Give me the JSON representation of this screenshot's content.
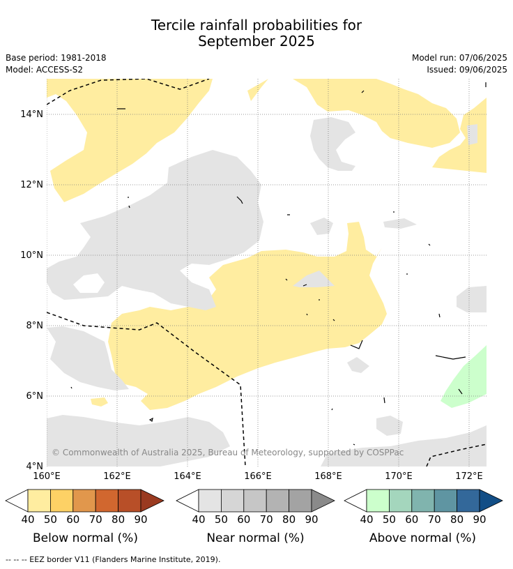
{
  "title_line1": "Tercile rainfall probabilities for",
  "title_line2": "September 2025",
  "meta": {
    "base_period": "Base period: 1981-2018",
    "model": "Model: ACCESS-S2",
    "model_run": "Model run: 07/06/2025",
    "issued": "Issued: 09/06/2025"
  },
  "map": {
    "lat_labels": [
      "14°N",
      "12°N",
      "10°N",
      "8°N",
      "6°N",
      "4°N"
    ],
    "lon_labels": [
      "160°E",
      "162°E",
      "164°E",
      "166°E",
      "168°E",
      "170°E",
      "172°E"
    ],
    "copyright": "© Commonwealth of Australia 2025, Bureau of Meteorology, supported by COSPPac",
    "colors": {
      "below_light": "#ffeda0",
      "near_light": "#e4e4e4",
      "above_light": "#ccffcc",
      "grid": "#7a7a7a",
      "border": "#000000"
    }
  },
  "colorbars": [
    {
      "label": "Below normal (%)",
      "ticks": [
        "40",
        "50",
        "60",
        "70",
        "80",
        "90"
      ],
      "colors": [
        "#ffeda0",
        "#fdd165",
        "#e1974c",
        "#d1672f",
        "#b84f28",
        "#9a3a20"
      ]
    },
    {
      "label": "Near normal (%)",
      "ticks": [
        "40",
        "50",
        "60",
        "70",
        "80",
        "90"
      ],
      "colors": [
        "#e4e4e4",
        "#d6d6d6",
        "#c6c6c6",
        "#b3b3b3",
        "#a3a3a3",
        "#8a8a8a"
      ]
    },
    {
      "label": "Above normal (%)",
      "ticks": [
        "40",
        "50",
        "60",
        "70",
        "80",
        "90"
      ],
      "colors": [
        "#ccffcc",
        "#a4d6bd",
        "#80b4ae",
        "#5f95a2",
        "#33689a",
        "#124e86"
      ]
    }
  ],
  "footer": "--  --  -- EEZ border V11 (Flanders Marine Institute, 2019)."
}
